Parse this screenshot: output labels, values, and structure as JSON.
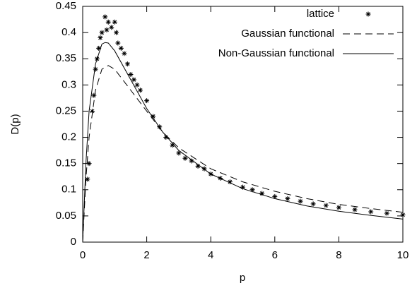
{
  "chart_data": {
    "type": "line",
    "xlabel": "p",
    "ylabel": "D(p)",
    "xlim": [
      0,
      10
    ],
    "xticks": [
      0,
      2,
      4,
      6,
      8,
      10
    ],
    "ylim": [
      0,
      0.45
    ],
    "yticks": [
      0,
      0.05,
      0.1,
      0.15,
      0.2,
      0.25,
      0.3,
      0.35,
      0.4,
      0.45
    ],
    "legend": "top-right",
    "series": [
      {
        "name": "lattice",
        "style": "points",
        "color": "#000000",
        "x": [
          0.15,
          0.2,
          0.3,
          0.35,
          0.4,
          0.45,
          0.5,
          0.55,
          0.6,
          0.7,
          0.75,
          0.8,
          0.9,
          1.0,
          1.05,
          1.1,
          1.2,
          1.3,
          1.4,
          1.5,
          1.6,
          1.7,
          1.8,
          2.0,
          2.2,
          2.4,
          2.6,
          2.8,
          3.0,
          3.2,
          3.4,
          3.6,
          3.8,
          4.0,
          4.3,
          4.6,
          5.0,
          5.3,
          5.6,
          6.0,
          6.4,
          6.8,
          7.2,
          7.6,
          8.0,
          8.5,
          9.0,
          9.5,
          10.0
        ],
        "values": [
          0.12,
          0.15,
          0.25,
          0.28,
          0.33,
          0.35,
          0.37,
          0.39,
          0.4,
          0.43,
          0.405,
          0.42,
          0.41,
          0.42,
          0.4,
          0.38,
          0.37,
          0.36,
          0.34,
          0.32,
          0.31,
          0.3,
          0.29,
          0.27,
          0.24,
          0.22,
          0.2,
          0.185,
          0.17,
          0.16,
          0.155,
          0.145,
          0.14,
          0.13,
          0.122,
          0.115,
          0.105,
          0.1,
          0.093,
          0.087,
          0.083,
          0.078,
          0.073,
          0.07,
          0.066,
          0.062,
          0.058,
          0.055,
          0.052
        ]
      },
      {
        "name": "Gaussian functional",
        "style": "dashed",
        "color": "#000000",
        "x": [
          0,
          0.1,
          0.2,
          0.4,
          0.6,
          0.8,
          1.0,
          1.5,
          2,
          2.5,
          3,
          4,
          5,
          6,
          7,
          8,
          9,
          10
        ],
        "values": [
          0,
          0.12,
          0.2,
          0.29,
          0.33,
          0.337,
          0.33,
          0.29,
          0.25,
          0.21,
          0.18,
          0.14,
          0.115,
          0.097,
          0.083,
          0.072,
          0.064,
          0.057
        ]
      },
      {
        "name": "Non-Gaussian functional",
        "style": "solid",
        "color": "#000000",
        "x": [
          0,
          0.1,
          0.2,
          0.4,
          0.6,
          0.7,
          0.8,
          1.0,
          1.5,
          2,
          2.5,
          3,
          4,
          5,
          6,
          7,
          8,
          9,
          10
        ],
        "values": [
          0,
          0.15,
          0.25,
          0.34,
          0.378,
          0.381,
          0.38,
          0.365,
          0.31,
          0.255,
          0.21,
          0.175,
          0.13,
          0.102,
          0.083,
          0.069,
          0.059,
          0.051,
          0.044
        ]
      }
    ]
  }
}
